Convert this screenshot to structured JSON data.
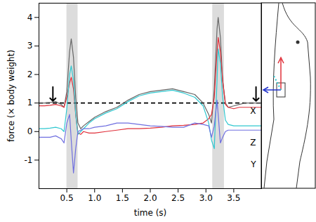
{
  "chart_data": {
    "type": "line",
    "x_label": "time (s)",
    "y_label": "force (× body weight)",
    "x": [
      0,
      0.1,
      0.2,
      0.3,
      0.4,
      0.45,
      0.5,
      0.55,
      0.58,
      0.62,
      0.66,
      0.7,
      0.75,
      0.8,
      0.9,
      1.0,
      1.2,
      1.4,
      1.6,
      1.8,
      2.0,
      2.2,
      2.4,
      2.6,
      2.8,
      2.95,
      3.05,
      3.1,
      3.15,
      3.2,
      3.22,
      3.26,
      3.3,
      3.35,
      3.4,
      3.5,
      3.6,
      3.7,
      3.8,
      3.9,
      4.0
    ],
    "series": [
      {
        "color": "#666666",
        "values": [
          1.0,
          1.0,
          1.02,
          1.05,
          0.95,
          0.85,
          1.4,
          2.8,
          3.25,
          2.6,
          1.2,
          0.3,
          0.1,
          0.2,
          0.35,
          0.5,
          0.7,
          0.85,
          1.1,
          1.3,
          1.4,
          1.45,
          1.5,
          1.4,
          1.3,
          1.0,
          0.6,
          0.3,
          1.5,
          3.6,
          4.0,
          3.3,
          1.8,
          1.0,
          0.85,
          0.9,
          0.95,
          1.0,
          1.0,
          1.0,
          1.0
        ]
      },
      {
        "name": "X",
        "color": "#e0303a",
        "label_y": 0.72,
        "values": [
          0.9,
          0.9,
          0.92,
          0.95,
          0.9,
          0.85,
          1.2,
          1.7,
          1.9,
          1.5,
          0.6,
          -0.05,
          -0.1,
          0.0,
          -0.05,
          -0.05,
          0.0,
          0.05,
          0.1,
          0.1,
          0.12,
          0.15,
          0.2,
          0.22,
          0.25,
          0.3,
          0.45,
          0.6,
          1.2,
          2.8,
          3.3,
          2.8,
          1.8,
          0.95,
          0.85,
          0.8,
          0.85,
          0.85,
          0.85,
          0.85,
          0.85
        ]
      },
      {
        "name": "Z",
        "color": "#30c8d0",
        "label_y": -0.4,
        "values": [
          0.1,
          0.1,
          0.12,
          0.15,
          0.1,
          0.0,
          0.8,
          2.0,
          2.3,
          1.8,
          0.6,
          -0.1,
          0.0,
          0.1,
          0.3,
          0.45,
          0.65,
          0.8,
          1.05,
          1.25,
          1.35,
          1.4,
          1.45,
          1.35,
          1.2,
          0.9,
          0.3,
          -0.3,
          -0.6,
          1.8,
          2.9,
          2.4,
          1.2,
          0.4,
          0.25,
          0.2,
          0.2,
          0.2,
          0.2,
          0.2,
          0.2
        ]
      },
      {
        "name": "Y",
        "color": "#6f6fe0",
        "label_y": -1.15,
        "values": [
          -0.2,
          -0.2,
          -0.2,
          -0.15,
          -0.25,
          -0.4,
          0.3,
          0.6,
          -0.3,
          -1.45,
          -0.6,
          0.0,
          0.05,
          0.1,
          0.1,
          0.15,
          0.2,
          0.3,
          0.3,
          0.25,
          0.2,
          0.18,
          0.15,
          0.15,
          0.3,
          0.25,
          0.2,
          -0.2,
          0.2,
          1.1,
          0.6,
          -0.4,
          -0.2,
          0.0,
          0.05,
          0.05,
          0.05,
          0.05,
          0.05,
          0.05,
          0.05
        ]
      }
    ],
    "shaded_regions": [
      [
        0.5,
        0.7
      ],
      [
        3.12,
        3.33
      ]
    ],
    "reference_line": {
      "value": 1,
      "line_style": "dashed",
      "color": "#000000"
    },
    "arrows": [
      {
        "x": 0.25,
        "y": 1.07
      },
      {
        "x": 3.9,
        "y": 1.07
      }
    ],
    "xlim": [
      0,
      4.0
    ],
    "xticks": [
      0.5,
      {
        "value": 1,
        "label": "1.0"
      },
      1.5,
      {
        "value": 2,
        "label": "2.0"
      },
      2.5,
      {
        "value": 3,
        "label": "3.0"
      },
      3.5
    ],
    "ylim": [
      -2,
      4.5
    ],
    "yticks": [
      -1,
      0,
      1,
      2,
      3,
      4
    ],
    "grid": false
  }
}
